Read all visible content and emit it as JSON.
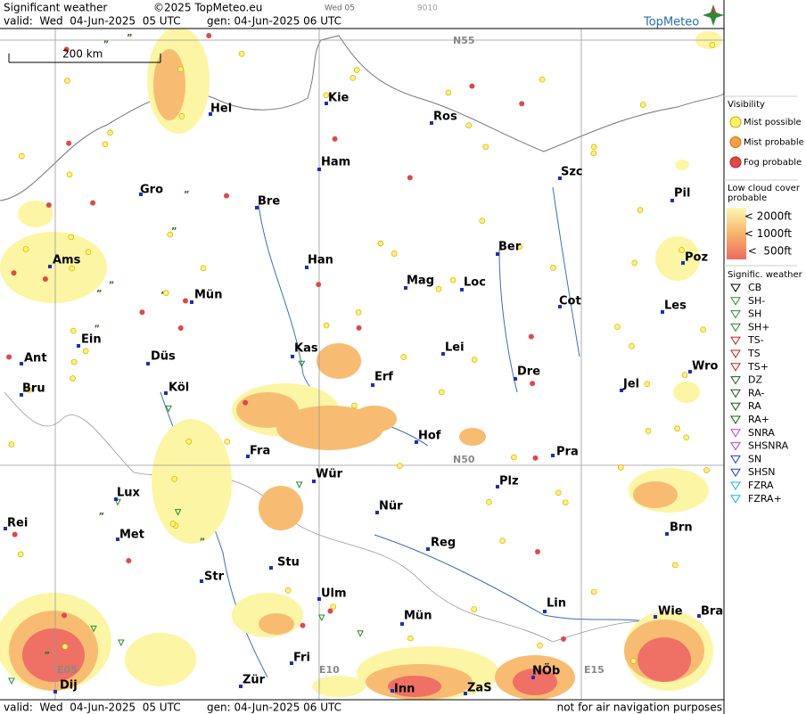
{
  "header": {
    "title": "Significant weather",
    "copyright": "©2025 TopMeteo.eu",
    "day": "Wed 05",
    "code": "9010",
    "valid": "valid:  Wed  04-Jun-2025  05 UTC",
    "gen": "gen: 04-Jun-2025 06 UTC",
    "logo": "TopMeteo"
  },
  "map": {
    "scale": "200 km",
    "grid_labels": [
      "N55",
      "N50",
      "E05",
      "E10",
      "E15"
    ],
    "cities": [
      "Kie",
      "Hel",
      "Ros",
      "Ham",
      "Szc",
      "Gro",
      "Bre",
      "Pil",
      "Ams",
      "Ber",
      "Han",
      "Poz",
      "Mün",
      "Mag",
      "Loc",
      "Cot",
      "Les",
      "Ein",
      "Kas",
      "Lei",
      "Ant",
      "Düs",
      "Wro",
      "Erf",
      "Dre",
      "Bru",
      "Köl",
      "Jel",
      "Hof",
      "Pra",
      "Fra",
      "Wür",
      "Lux",
      "Plz",
      "Rei",
      "Nür",
      "Met",
      "Brn",
      "Reg",
      "Stu",
      "Str",
      "Ulm",
      "Lin",
      "Mün",
      "Wie",
      "Bra",
      "Fri",
      "Inn",
      "ZaS",
      "NÖb",
      "Dij",
      "Zür"
    ]
  },
  "legend": {
    "visibility": {
      "title": "Visibility",
      "items": [
        "Mist possible",
        "Mist probable",
        "Fog probable"
      ]
    },
    "low_cloud": {
      "title_lines": [
        "Low cloud cover",
        "probable"
      ],
      "items": [
        "< 2000ft",
        "< 1000ft",
        "<  500ft"
      ]
    },
    "weather": {
      "title": "Signific. weather",
      "items": [
        "CB",
        "SH-",
        "SH",
        "SH+",
        "TS-",
        "TS",
        "TS+",
        "DZ",
        "RA-",
        "RA",
        "RA+",
        "SNRA",
        "SHSNRA",
        "SN",
        "SHSN",
        "FZRA",
        "FZRA+"
      ]
    }
  },
  "footer": {
    "valid": "valid:  Wed  04-Jun-2025  05 UTC",
    "gen": "gen: 04-Jun-2025 06 UTC",
    "note": "not for air navigation purposes"
  }
}
